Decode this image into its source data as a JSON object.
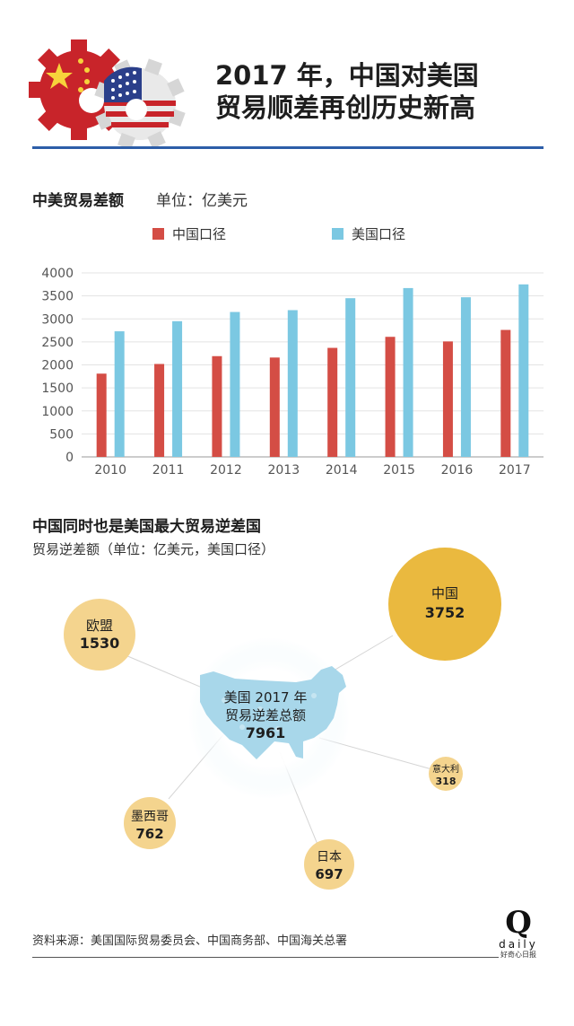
{
  "header": {
    "title_line1": "2017 年，中国对美国",
    "title_line2": "贸易顺差再创历史新高"
  },
  "section1": {
    "title": "中美贸易差额",
    "unit": "单位：亿美元"
  },
  "chart_data": {
    "type": "bar",
    "categories": [
      "2010",
      "2011",
      "2012",
      "2013",
      "2014",
      "2015",
      "2016",
      "2017"
    ],
    "series": [
      {
        "name": "中国口径",
        "color": "#d44d45",
        "values": [
          1810,
          2020,
          2190,
          2160,
          2370,
          2610,
          2510,
          2760
        ]
      },
      {
        "name": "美国口径",
        "color": "#7bc8e2",
        "values": [
          2730,
          2950,
          3150,
          3190,
          3450,
          3670,
          3470,
          3750
        ]
      }
    ],
    "y_ticks": [
      "0",
      "500",
      "1000",
      "1500",
      "2000",
      "2500",
      "3000",
      "3500",
      "4000"
    ],
    "ylim": [
      0,
      4000
    ],
    "grid": true,
    "legend_position": "top"
  },
  "section2": {
    "title": "中国同时也是美国最大贸易逆差国",
    "subtitle": "贸易逆差额（单位：亿美元，美国口径）",
    "center_line1": "美国 2017 年",
    "center_line2": "贸易逆差总额",
    "center_value": "7961",
    "partners": [
      {
        "name": "中国",
        "value": "3752"
      },
      {
        "name": "欧盟",
        "value": "1530"
      },
      {
        "name": "墨西哥",
        "value": "762"
      },
      {
        "name": "日本",
        "value": "697"
      },
      {
        "name": "意大利",
        "value": "318"
      }
    ]
  },
  "footer": {
    "source": "资料来源：美国国际贸易委员会、中国商务部、中国海关总署",
    "logo_letter": "Q",
    "logo_word": "daily",
    "logo_tagline": "好奇心日报"
  },
  "colors": {
    "china_bar": "#d44d45",
    "us_bar": "#7bc8e2",
    "bubble_large": "#eab93f",
    "bubble_small": "#f4d48e",
    "rule_blue": "#2d5ea8"
  }
}
